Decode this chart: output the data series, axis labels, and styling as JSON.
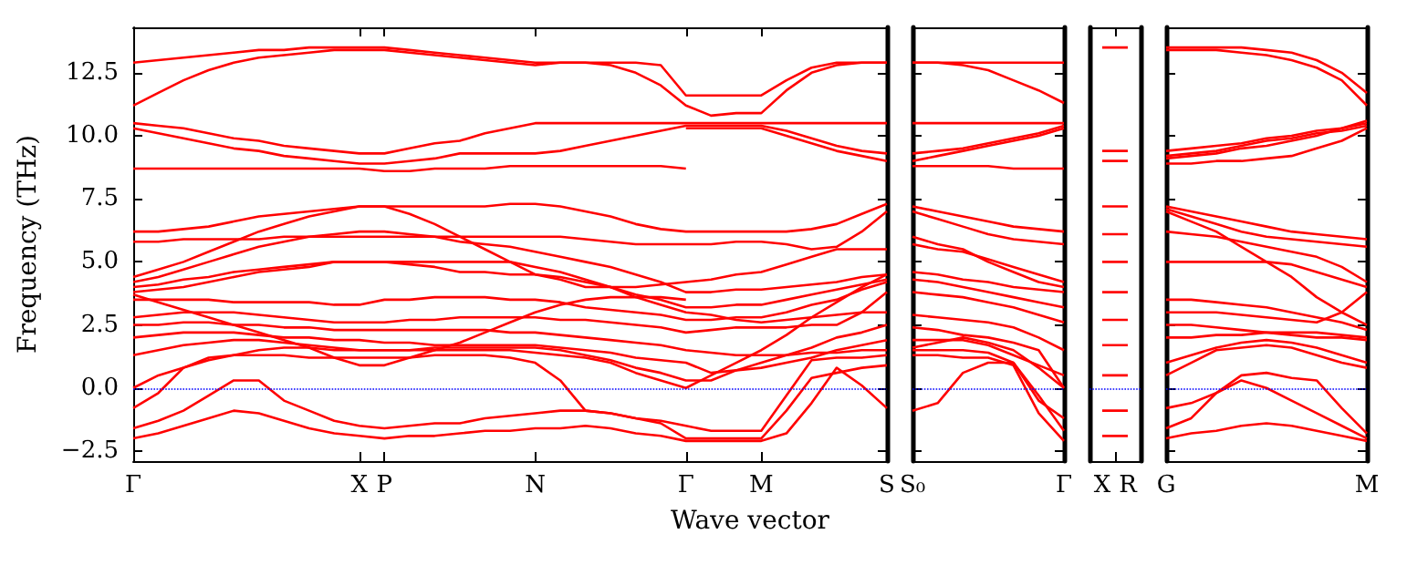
{
  "chart_data": [
    {
      "type": "line",
      "xlabel": "Wave vector",
      "ylabel": "Frequency (THz)",
      "ylim": [
        -2.9,
        14.3
      ],
      "categories": [
        "Γ",
        null,
        null,
        null,
        null,
        null,
        null,
        null,
        null,
        "X",
        "P",
        null,
        null,
        null,
        null,
        null,
        "N",
        null,
        null,
        null,
        null,
        null,
        "Γ",
        null,
        null,
        "M",
        null,
        null,
        null,
        null,
        "S"
      ],
      "yticks": [
        {
          "value": -2.5,
          "label": "−2.5"
        },
        {
          "value": 0,
          "label": "0.0"
        },
        {
          "value": 2.5,
          "label": "2.5"
        },
        {
          "value": 5,
          "label": "5.0"
        },
        {
          "value": 7.5,
          "label": "7.5"
        },
        {
          "value": 10,
          "label": "10.0"
        },
        {
          "value": 12.5,
          "label": "12.5"
        }
      ],
      "grid": false,
      "marker": "none",
      "line_style": "solid",
      "ref_lines": [
        {
          "axis": "y",
          "value": 0,
          "color": "#0000ff",
          "line_style": "dotted"
        }
      ],
      "series": [
        {
          "color": "#ff0000",
          "values": [
            12.9,
            13.0,
            13.1,
            13.2,
            13.3,
            13.4,
            13.4,
            13.5,
            13.5,
            13.5,
            13.5,
            13.4,
            13.3,
            13.2,
            13.1,
            13.0,
            12.9,
            12.9,
            12.9,
            12.8,
            12.5,
            12.0,
            11.2,
            10.8,
            10.9,
            10.9,
            11.8,
            12.5,
            12.8,
            12.9,
            12.9
          ]
        },
        {
          "color": "#ff0000",
          "values": [
            11.2,
            11.7,
            12.2,
            12.6,
            12.9,
            13.1,
            13.2,
            13.3,
            13.4,
            13.4,
            13.4,
            13.3,
            13.2,
            13.1,
            13.0,
            12.9,
            12.8,
            12.9,
            12.9,
            12.9,
            12.9,
            12.8,
            11.6,
            11.6,
            11.6,
            11.6,
            12.2,
            12.7,
            12.9,
            12.9,
            12.9
          ]
        },
        {
          "color": "#ff0000",
          "values": [
            10.5,
            10.4,
            10.3,
            10.1,
            9.9,
            9.8,
            9.6,
            9.5,
            9.4,
            9.3,
            9.3,
            9.5,
            9.7,
            9.8,
            10.1,
            10.3,
            10.5,
            10.5,
            10.5,
            10.5,
            10.5,
            10.5,
            10.5,
            10.5,
            10.5,
            10.5,
            10.5,
            10.5,
            10.5,
            10.5,
            10.5
          ]
        },
        {
          "color": "#ff0000",
          "values": [
            10.3,
            10.1,
            9.9,
            9.7,
            9.5,
            9.4,
            9.2,
            9.1,
            9.0,
            8.9,
            8.9,
            9.0,
            9.1,
            9.3,
            9.3,
            9.3,
            9.3,
            9.4,
            9.6,
            9.8,
            10.0,
            10.2,
            10.4,
            10.4,
            10.4,
            10.4,
            10.2,
            9.9,
            9.6,
            9.4,
            9.3
          ]
        },
        {
          "color": "#ff0000",
          "values": [
            8.7,
            8.7,
            8.7,
            8.7,
            8.7,
            8.7,
            8.7,
            8.7,
            8.7,
            8.7,
            8.6,
            8.6,
            8.7,
            8.7,
            8.7,
            8.8,
            8.8,
            8.8,
            8.8,
            8.8,
            8.8,
            8.8,
            8.7,
            null,
            null,
            null,
            null,
            null,
            null,
            null,
            null
          ]
        },
        {
          "color": "#ff0000",
          "values": [
            null,
            null,
            null,
            null,
            null,
            null,
            null,
            null,
            null,
            null,
            null,
            null,
            null,
            null,
            null,
            null,
            null,
            null,
            null,
            null,
            null,
            null,
            10.3,
            10.3,
            10.3,
            10.3,
            10.0,
            9.7,
            9.4,
            9.2,
            9.0
          ]
        },
        {
          "color": "#ff0000",
          "values": [
            6.2,
            6.2,
            6.3,
            6.4,
            6.6,
            6.8,
            6.9,
            7.0,
            7.1,
            7.2,
            7.2,
            7.2,
            7.2,
            7.2,
            7.2,
            7.3,
            7.3,
            7.2,
            7.0,
            6.8,
            6.5,
            6.3,
            6.2,
            6.2,
            6.2,
            6.2,
            6.2,
            6.3,
            6.5,
            6.9,
            7.3
          ]
        },
        {
          "color": "#ff0000",
          "values": [
            5.8,
            5.8,
            5.9,
            5.9,
            5.9,
            5.9,
            6.0,
            6.0,
            6.0,
            6.0,
            6.0,
            6.0,
            6.0,
            6.0,
            6.0,
            6.0,
            6.0,
            6.0,
            5.9,
            5.8,
            5.7,
            5.7,
            5.7,
            5.7,
            5.8,
            5.8,
            5.7,
            5.5,
            5.6,
            6.2,
            7.0
          ]
        },
        {
          "color": "#ff0000",
          "values": [
            4.4,
            4.7,
            5.0,
            5.4,
            5.8,
            6.2,
            6.5,
            6.8,
            7.0,
            7.2,
            7.2,
            6.9,
            6.5,
            6.0,
            5.5,
            5.0,
            4.5,
            4.3,
            4.0,
            4.0,
            4.0,
            4.1,
            4.2,
            4.3,
            4.5,
            4.6,
            4.9,
            5.2,
            5.5,
            5.5,
            5.5
          ]
        },
        {
          "color": "#ff0000",
          "values": [
            4.2,
            4.4,
            4.7,
            5.0,
            5.3,
            5.6,
            5.8,
            6.0,
            6.1,
            6.2,
            6.2,
            6.1,
            6.0,
            5.8,
            5.7,
            5.6,
            5.4,
            5.2,
            5.0,
            4.8,
            4.5,
            4.2,
            3.8,
            3.8,
            3.9,
            3.9,
            4.0,
            4.1,
            4.2,
            4.4,
            4.5
          ]
        },
        {
          "color": "#ff0000",
          "values": [
            4.0,
            4.1,
            4.3,
            4.4,
            4.6,
            4.7,
            4.8,
            4.9,
            5.0,
            5.0,
            5.0,
            5.0,
            5.0,
            5.0,
            5.0,
            5.0,
            4.8,
            4.6,
            4.3,
            4.0,
            3.6,
            3.3,
            3.0,
            2.9,
            2.7,
            2.6,
            2.7,
            2.8,
            2.9,
            3.0,
            3.0
          ]
        },
        {
          "color": "#ff0000",
          "values": [
            3.8,
            3.9,
            4.0,
            4.2,
            4.4,
            4.6,
            4.7,
            4.8,
            5.0,
            5.0,
            5.0,
            4.9,
            4.8,
            4.6,
            4.6,
            4.5,
            4.5,
            4.4,
            4.2,
            4.0,
            3.7,
            3.5,
            3.2,
            3.2,
            3.3,
            3.3,
            3.5,
            3.7,
            3.9,
            4.1,
            4.3
          ]
        },
        {
          "color": "#ff0000",
          "values": [
            3.5,
            3.5,
            3.5,
            3.5,
            3.4,
            3.4,
            3.4,
            3.4,
            3.3,
            3.3,
            3.5,
            3.5,
            3.6,
            3.6,
            3.6,
            3.5,
            3.5,
            3.4,
            3.2,
            3.1,
            3.0,
            2.9,
            2.7,
            2.7,
            2.8,
            2.8,
            3.0,
            3.3,
            3.5,
            3.9,
            4.2
          ]
        },
        {
          "color": "#ff0000",
          "values": [
            3.7,
            3.4,
            3.1,
            2.8,
            2.5,
            2.2,
            1.9,
            1.6,
            1.2,
            0.9,
            0.9,
            1.2,
            1.5,
            1.8,
            2.2,
            2.6,
            3.0,
            3.3,
            3.5,
            3.6,
            3.6,
            3.6,
            3.5,
            null,
            null,
            null,
            null,
            null,
            null,
            null,
            null
          ]
        },
        {
          "color": "#ff0000",
          "values": [
            2.8,
            2.9,
            3.0,
            3.0,
            3.0,
            2.9,
            2.8,
            2.7,
            2.6,
            2.6,
            2.6,
            2.7,
            2.7,
            2.8,
            2.8,
            2.8,
            2.8,
            2.7,
            2.7,
            2.6,
            2.5,
            2.4,
            2.2,
            2.3,
            2.4,
            2.4,
            2.4,
            2.5,
            2.5,
            3.0,
            3.8
          ]
        },
        {
          "color": "#ff0000",
          "values": [
            2.5,
            2.5,
            2.6,
            2.6,
            2.5,
            2.5,
            2.4,
            2.4,
            2.3,
            2.3,
            2.3,
            2.3,
            2.3,
            2.3,
            2.3,
            2.2,
            2.2,
            2.1,
            2.0,
            1.9,
            1.8,
            1.7,
            1.5,
            1.4,
            1.3,
            1.3,
            1.3,
            1.4,
            1.4,
            1.5,
            1.5
          ]
        },
        {
          "color": "#ff0000",
          "values": [
            2.0,
            2.1,
            2.2,
            2.2,
            2.2,
            2.1,
            2.0,
            2.0,
            1.9,
            1.9,
            1.8,
            1.8,
            1.7,
            1.7,
            1.7,
            1.7,
            1.7,
            1.6,
            1.5,
            1.4,
            1.2,
            1.1,
            1.0,
            0.6,
            0.7,
            0.8,
            1.0,
            1.2,
            1.5,
            1.7,
            1.9
          ]
        },
        {
          "color": "#ff0000",
          "values": [
            1.3,
            1.5,
            1.7,
            1.8,
            1.9,
            1.9,
            1.8,
            1.7,
            1.6,
            1.5,
            1.5,
            1.5,
            1.6,
            1.6,
            1.6,
            1.6,
            1.6,
            1.5,
            1.3,
            1.1,
            0.8,
            0.6,
            0.3,
            0.3,
            0.7,
            1.0,
            1.3,
            1.6,
            2.0,
            2.2,
            2.5
          ]
        },
        {
          "color": "#ff0000",
          "values": [
            0.0,
            0.5,
            0.8,
            1.1,
            1.3,
            1.5,
            1.6,
            1.6,
            1.5,
            1.5,
            1.5,
            1.5,
            1.5,
            1.5,
            1.5,
            1.5,
            1.4,
            1.3,
            1.2,
            1.0,
            0.6,
            0.3,
            0.0,
            0.5,
            1.0,
            1.5,
            2.1,
            2.8,
            3.4,
            4.0,
            4.5
          ]
        },
        {
          "color": "#ff0000",
          "values": [
            -0.8,
            -0.2,
            0.8,
            1.2,
            1.3,
            1.3,
            1.3,
            1.2,
            1.2,
            1.2,
            1.2,
            1.2,
            1.3,
            1.3,
            1.3,
            1.2,
            1.0,
            0.3,
            -0.9,
            -1.0,
            -1.2,
            -1.3,
            -1.5,
            -1.7,
            -1.7,
            -1.7,
            -0.3,
            1.1,
            1.2,
            1.2,
            1.3
          ]
        },
        {
          "color": "#ff0000",
          "values": [
            -1.6,
            -1.3,
            -0.9,
            -0.3,
            0.3,
            0.3,
            -0.5,
            -0.9,
            -1.3,
            -1.5,
            -1.6,
            -1.5,
            -1.4,
            -1.4,
            -1.2,
            -1.1,
            -1.0,
            -0.9,
            -0.9,
            -1.0,
            -1.2,
            -1.4,
            -2.0,
            -2.0,
            -2.0,
            -2.0,
            -0.9,
            0.4,
            0.6,
            0.8,
            0.9
          ]
        },
        {
          "color": "#ff0000",
          "values": [
            -2.0,
            -1.8,
            -1.5,
            -1.2,
            -0.9,
            -1.0,
            -1.3,
            -1.6,
            -1.8,
            -1.9,
            -2.0,
            -1.9,
            -1.9,
            -1.8,
            -1.7,
            -1.7,
            -1.6,
            -1.6,
            -1.5,
            -1.6,
            -1.8,
            -1.9,
            -2.1,
            -2.1,
            -2.1,
            -2.1,
            -1.8,
            -0.6,
            0.8,
            0.1,
            -0.8
          ]
        }
      ]
    },
    {
      "type": "line",
      "ylim": [
        -2.9,
        14.3
      ],
      "categories": [
        "S₀",
        null,
        null,
        null,
        null,
        null,
        "Γ"
      ],
      "yticks": [
        {
          "value": -2.5,
          "label": null
        },
        {
          "value": 0,
          "label": null
        },
        {
          "value": 2.5,
          "label": null
        },
        {
          "value": 5,
          "label": null
        },
        {
          "value": 7.5,
          "label": null
        },
        {
          "value": 10,
          "label": null
        },
        {
          "value": 12.5,
          "label": null
        }
      ],
      "tick_labels": "x",
      "grid": false,
      "marker": "none",
      "line_style": "solid",
      "ref_lines": [
        {
          "axis": "y",
          "value": 0,
          "color": "#0000ff",
          "line_style": "dotted"
        }
      ],
      "series": [
        {
          "color": "#ff0000",
          "values": [
            12.9,
            12.9,
            12.9,
            12.9,
            12.9,
            12.9,
            12.9
          ]
        },
        {
          "color": "#ff0000",
          "values": [
            12.9,
            12.9,
            12.8,
            12.6,
            12.2,
            11.8,
            11.3
          ]
        },
        {
          "color": "#ff0000",
          "values": [
            10.5,
            10.5,
            10.5,
            10.5,
            10.5,
            10.5,
            10.5
          ]
        },
        {
          "color": "#ff0000",
          "values": [
            9.3,
            9.4,
            9.5,
            9.7,
            9.9,
            10.1,
            10.4
          ]
        },
        {
          "color": "#ff0000",
          "values": [
            8.8,
            8.8,
            8.8,
            8.8,
            8.7,
            8.7,
            8.7
          ]
        },
        {
          "color": "#ff0000",
          "values": [
            9.0,
            9.2,
            9.4,
            9.6,
            9.8,
            10.0,
            10.3
          ]
        },
        {
          "color": "#ff0000",
          "values": [
            7.2,
            7.0,
            6.8,
            6.6,
            6.4,
            6.3,
            6.2
          ]
        },
        {
          "color": "#ff0000",
          "values": [
            7.0,
            6.7,
            6.4,
            6.1,
            5.9,
            5.8,
            5.7
          ]
        },
        {
          "color": "#ff0000",
          "values": [
            6.0,
            5.7,
            5.5,
            5.0,
            4.6,
            4.2,
            4.0
          ]
        },
        {
          "color": "#ff0000",
          "values": [
            5.7,
            5.5,
            5.4,
            5.1,
            4.8,
            4.5,
            4.2
          ]
        },
        {
          "color": "#ff0000",
          "values": [
            4.6,
            4.5,
            4.3,
            4.2,
            4.0,
            3.9,
            3.8
          ]
        },
        {
          "color": "#ff0000",
          "values": [
            4.3,
            4.2,
            4.0,
            3.8,
            3.6,
            3.4,
            3.2
          ]
        },
        {
          "color": "#ff0000",
          "values": [
            3.8,
            3.7,
            3.6,
            3.4,
            3.2,
            2.9,
            2.6
          ]
        },
        {
          "color": "#ff0000",
          "values": [
            2.9,
            2.8,
            2.7,
            2.6,
            2.4,
            2.0,
            1.5
          ]
        },
        {
          "color": "#ff0000",
          "values": [
            2.4,
            2.3,
            2.1,
            2.0,
            1.8,
            1.5,
            0.0
          ]
        },
        {
          "color": "#ff0000",
          "values": [
            1.9,
            1.9,
            1.9,
            1.7,
            1.3,
            0.9,
            0.5
          ]
        },
        {
          "color": "#ff0000",
          "values": [
            1.6,
            1.8,
            2.0,
            1.8,
            1.5,
            0.8,
            0.0
          ]
        },
        {
          "color": "#ff0000",
          "values": [
            1.3,
            1.3,
            1.2,
            1.2,
            0.9,
            -1.0,
            -2.1
          ]
        },
        {
          "color": "#ff0000",
          "values": [
            1.5,
            1.5,
            1.5,
            1.4,
            1.0,
            -0.3,
            -1.7
          ]
        },
        {
          "color": "#ff0000",
          "values": [
            -0.9,
            -0.6,
            0.6,
            1.0,
            1.0,
            -0.5,
            -1.2
          ]
        }
      ]
    },
    {
      "type": "line",
      "ylim": [
        -2.9,
        14.3
      ],
      "categories": [
        "X",
        "R"
      ],
      "tick_labels": "x",
      "grid": false,
      "marker": "none",
      "line_style": "solid",
      "ref_lines": [
        {
          "axis": "y",
          "value": 0,
          "color": "#0000ff",
          "line_style": "dotted"
        }
      ],
      "series": [
        {
          "color": "#ff0000",
          "values": [
            13.5,
            13.5
          ]
        },
        {
          "color": "#ff0000",
          "values": [
            9.4,
            9.4
          ]
        },
        {
          "color": "#ff0000",
          "values": [
            9.0,
            9.0
          ]
        },
        {
          "color": "#ff0000",
          "values": [
            7.2,
            7.2
          ]
        },
        {
          "color": "#ff0000",
          "values": [
            6.1,
            6.1
          ]
        },
        {
          "color": "#ff0000",
          "values": [
            5.0,
            5.0
          ]
        },
        {
          "color": "#ff0000",
          "values": [
            3.8,
            3.8
          ]
        },
        {
          "color": "#ff0000",
          "values": [
            2.7,
            2.7
          ]
        },
        {
          "color": "#ff0000",
          "values": [
            1.7,
            1.7
          ]
        },
        {
          "color": "#ff0000",
          "values": [
            0.5,
            0.5
          ]
        },
        {
          "color": "#ff0000",
          "values": [
            -0.9,
            -0.9
          ]
        },
        {
          "color": "#ff0000",
          "values": [
            -1.9,
            -1.9
          ]
        }
      ]
    },
    {
      "type": "line",
      "ylim": [
        -2.9,
        14.3
      ],
      "categories": [
        "G",
        null,
        null,
        null,
        null,
        null,
        null,
        null,
        "M"
      ],
      "yticks": [
        {
          "value": -2.5,
          "label": null
        },
        {
          "value": 0,
          "label": null
        },
        {
          "value": 2.5,
          "label": null
        },
        {
          "value": 5,
          "label": null
        },
        {
          "value": 7.5,
          "label": null
        },
        {
          "value": 10,
          "label": null
        },
        {
          "value": 12.5,
          "label": null
        }
      ],
      "tick_labels": "x",
      "grid": false,
      "marker": "none",
      "line_style": "solid",
      "ref_lines": [
        {
          "axis": "y",
          "value": 0,
          "color": "#0000ff",
          "line_style": "dotted"
        }
      ],
      "series": [
        {
          "color": "#ff0000",
          "values": [
            13.5,
            13.5,
            13.5,
            13.5,
            13.4,
            13.3,
            13.0,
            12.5,
            11.7
          ]
        },
        {
          "color": "#ff0000",
          "values": [
            13.4,
            13.4,
            13.4,
            13.3,
            13.2,
            13.0,
            12.7,
            12.2,
            11.2
          ]
        },
        {
          "color": "#ff0000",
          "values": [
            9.4,
            9.5,
            9.6,
            9.7,
            9.9,
            10.0,
            10.2,
            10.3,
            10.5
          ]
        },
        {
          "color": "#ff0000",
          "values": [
            9.2,
            9.3,
            9.4,
            9.6,
            9.8,
            9.9,
            10.1,
            10.2,
            10.4
          ]
        },
        {
          "color": "#ff0000",
          "values": [
            8.9,
            8.9,
            9.0,
            9.0,
            9.1,
            9.2,
            9.5,
            9.8,
            10.3
          ]
        },
        {
          "color": "#ff0000",
          "values": [
            9.1,
            9.2,
            9.3,
            9.5,
            9.6,
            9.8,
            10.0,
            10.3,
            10.6
          ]
        },
        {
          "color": "#ff0000",
          "values": [
            7.2,
            7.0,
            6.8,
            6.6,
            6.4,
            6.2,
            6.1,
            6.0,
            5.9
          ]
        },
        {
          "color": "#ff0000",
          "values": [
            7.1,
            6.8,
            6.5,
            6.2,
            6.0,
            5.9,
            5.8,
            5.7,
            5.6
          ]
        },
        {
          "color": "#ff0000",
          "values": [
            6.2,
            6.1,
            6.0,
            5.8,
            5.6,
            5.4,
            5.2,
            4.8,
            4.2
          ]
        },
        {
          "color": "#ff0000",
          "values": [
            5.0,
            5.0,
            5.0,
            5.0,
            5.0,
            4.9,
            4.6,
            4.3,
            4.0
          ]
        },
        {
          "color": "#ff0000",
          "values": [
            7.0,
            6.6,
            6.2,
            5.6,
            5.0,
            4.4,
            3.6,
            3.0,
            2.5
          ]
        },
        {
          "color": "#ff0000",
          "values": [
            3.5,
            3.5,
            3.4,
            3.3,
            3.2,
            3.0,
            2.8,
            2.6,
            2.3
          ]
        },
        {
          "color": "#ff0000",
          "values": [
            3.0,
            3.0,
            3.0,
            2.9,
            2.8,
            2.7,
            2.6,
            3.0,
            3.8
          ]
        },
        {
          "color": "#ff0000",
          "values": [
            2.5,
            2.5,
            2.4,
            2.3,
            2.2,
            2.1,
            2.0,
            2.0,
            1.9
          ]
        },
        {
          "color": "#ff0000",
          "values": [
            2.0,
            2.0,
            2.1,
            2.1,
            2.2,
            2.2,
            2.2,
            2.1,
            2.0
          ]
        },
        {
          "color": "#ff0000",
          "values": [
            1.0,
            1.3,
            1.6,
            1.8,
            1.9,
            1.8,
            1.6,
            1.3,
            1.0
          ]
        },
        {
          "color": "#ff0000",
          "values": [
            0.5,
            1.0,
            1.5,
            1.6,
            1.7,
            1.6,
            1.3,
            1.0,
            0.8
          ]
        },
        {
          "color": "#ff0000",
          "values": [
            -2.0,
            -1.8,
            -1.7,
            -1.5,
            -1.4,
            -1.5,
            -1.7,
            -1.9,
            -2.1
          ]
        },
        {
          "color": "#ff0000",
          "values": [
            -0.8,
            -0.6,
            -0.2,
            0.5,
            0.6,
            0.4,
            0.3,
            -0.8,
            -1.8
          ]
        },
        {
          "color": "#ff0000",
          "values": [
            -1.6,
            -1.2,
            -0.2,
            0.3,
            0.0,
            -0.5,
            -1.0,
            -1.5,
            -2.0
          ]
        }
      ]
    }
  ]
}
